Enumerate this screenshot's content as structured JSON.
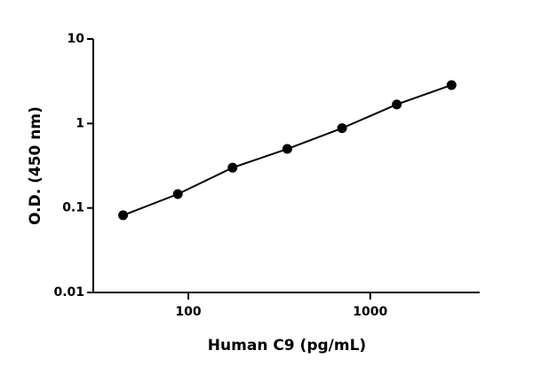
{
  "chart_data": {
    "type": "scatter",
    "x_label": "Human C9 (pg/mL)",
    "y_label": "O.D. (450 nm)",
    "x_scale": "log",
    "y_scale": "log",
    "xlim": [
      30,
      4000
    ],
    "xticks": [
      100,
      1000
    ],
    "ylim": [
      0.01,
      10
    ],
    "yticks": [
      0.01,
      0.1,
      1,
      10
    ],
    "series": [
      {
        "color": "#000000",
        "x": [
          43.75,
          87.5,
          175,
          350,
          700,
          1400,
          2800
        ],
        "values": [
          0.082,
          0.146,
          0.3,
          0.5,
          0.88,
          1.68,
          2.85
        ]
      }
    ]
  }
}
